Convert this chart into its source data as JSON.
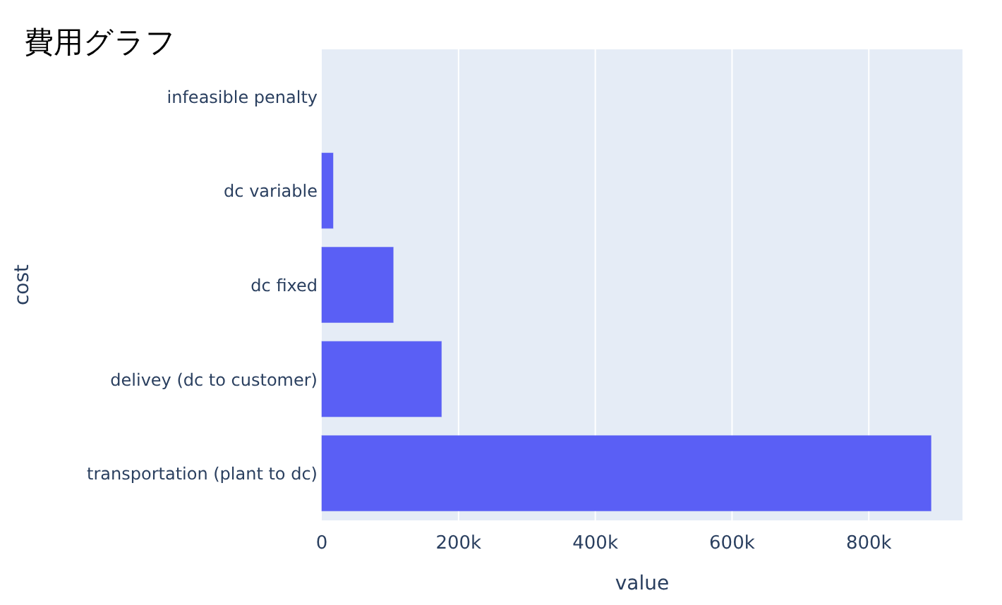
{
  "chart_data": {
    "type": "bar",
    "orientation": "horizontal",
    "title": "費用グラフ",
    "xlabel": "value",
    "ylabel": "cost",
    "categories": [
      "infeasible penalty",
      "dc variable",
      "dc fixed",
      "delivey (dc to customer)",
      "transportation (plant to dc)"
    ],
    "values": [
      0,
      16500,
      104500,
      175000,
      891000
    ],
    "color": "#5a5ff5",
    "xlim": [
      0,
      937000
    ],
    "xticks": [
      {
        "value": 0,
        "label": "0"
      },
      {
        "value": 200000,
        "label": "200k"
      },
      {
        "value": 400000,
        "label": "400k"
      },
      {
        "value": 600000,
        "label": "600k"
      },
      {
        "value": 800000,
        "label": "800k"
      }
    ],
    "grid": "x"
  }
}
